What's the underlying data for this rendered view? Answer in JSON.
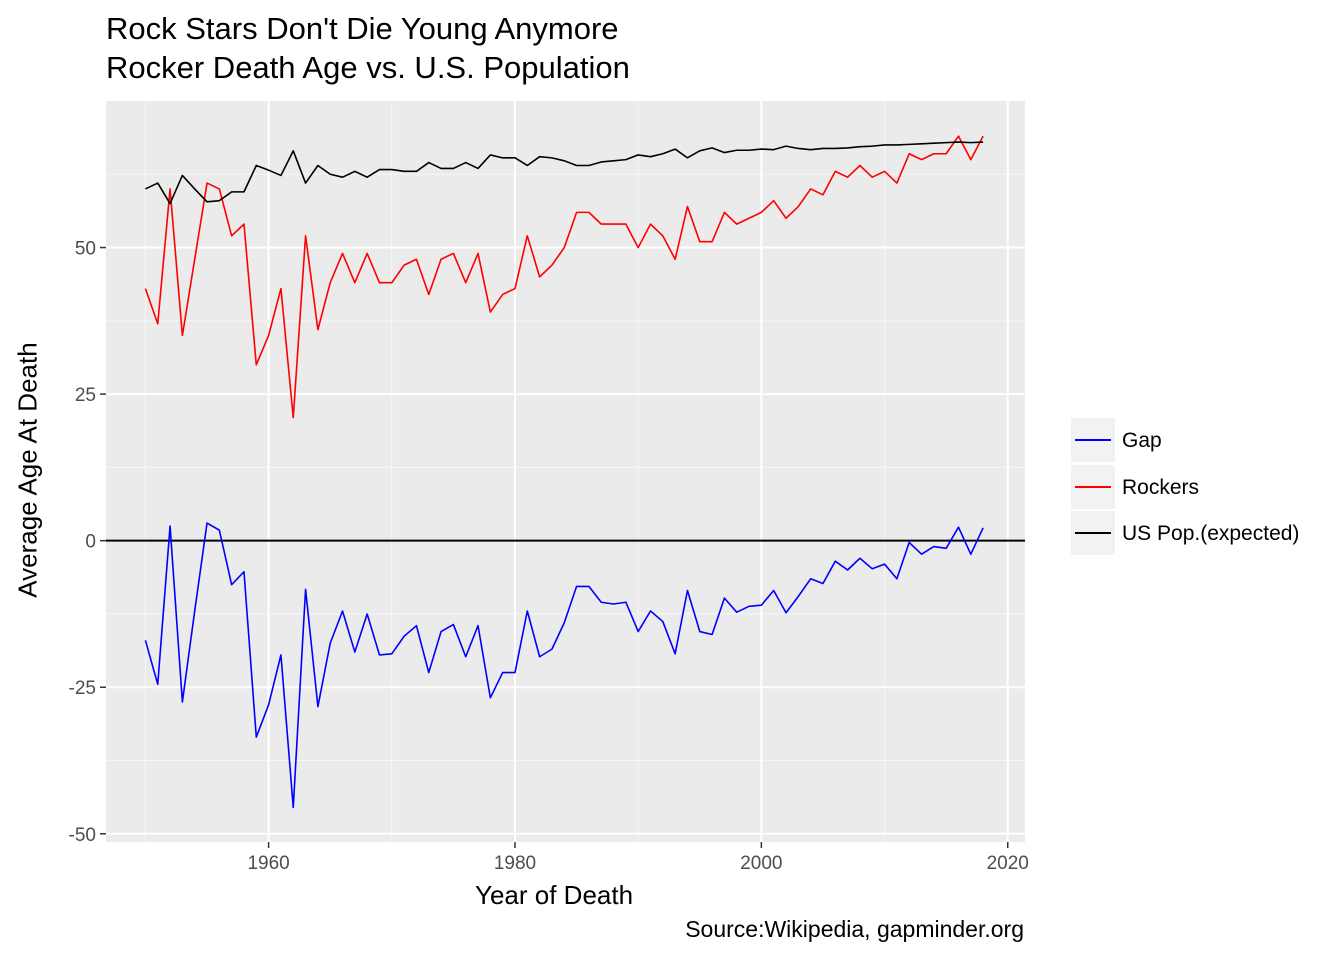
{
  "chart_data": {
    "type": "line",
    "title": "Rock Stars Don't Die Young Anymore",
    "subtitle": "Rocker Death Age vs. U.S. Population",
    "xlabel": "Year of Death",
    "ylabel": "Average Age At Death",
    "caption": "Source:Wikipedia, gapminder.org",
    "xlim": [
      1946.8,
      2021.4
    ],
    "ylim": [
      -51.4,
      75.0
    ],
    "xticks": [
      1960,
      1980,
      2000,
      2020
    ],
    "yticks": [
      -50,
      -25,
      0,
      25,
      50
    ],
    "grid": true,
    "legend_position": "right",
    "hline": 0,
    "x": [
      1950,
      1951,
      1952,
      1953,
      1954,
      1955,
      1956,
      1957,
      1958,
      1959,
      1960,
      1961,
      1962,
      1963,
      1964,
      1965,
      1966,
      1967,
      1968,
      1969,
      1970,
      1971,
      1972,
      1973,
      1974,
      1975,
      1976,
      1977,
      1978,
      1979,
      1980,
      1981,
      1982,
      1983,
      1984,
      1985,
      1986,
      1987,
      1988,
      1989,
      1990,
      1991,
      1992,
      1993,
      1994,
      1995,
      1996,
      1997,
      1998,
      1999,
      2000,
      2001,
      2002,
      2003,
      2004,
      2005,
      2006,
      2007,
      2008,
      2009,
      2010,
      2011,
      2012,
      2013,
      2014,
      2015,
      2016,
      2017,
      2018
    ],
    "series": [
      {
        "name": "Gap",
        "color": "#0000FF",
        "values": [
          -17,
          -24.5,
          2.5,
          -27.5,
          -12,
          3,
          1.8,
          -7.5,
          -5.3,
          -33.5,
          -28,
          -19.5,
          -45.5,
          -8.3,
          -28.3,
          -17.5,
          -12,
          -19,
          -12.5,
          -19.5,
          -19.3,
          -16.3,
          -14.5,
          -22.5,
          -15.5,
          -14.3,
          -19.8,
          -14.5,
          -26.8,
          -22.5,
          -22.5,
          -12,
          -19.8,
          -18.5,
          -14,
          -7.8,
          -7.8,
          -10.5,
          -10.8,
          -10.5,
          -15.5,
          -12,
          -13.8,
          -19.3,
          -8.5,
          -15.5,
          -16,
          -9.8,
          -12.2,
          -11.2,
          -11,
          -8.5,
          -12.3,
          -9.5,
          -6.5,
          -7.3,
          -3.5,
          -5,
          -3,
          -4.8,
          -4,
          -6.5,
          -0.3,
          -2.3,
          -1,
          -1.3,
          2.3,
          -2.3,
          2.2
        ]
      },
      {
        "name": "Rockers",
        "color": "#FF0000",
        "values": [
          43,
          37,
          60,
          35,
          48,
          61,
          60,
          52,
          54,
          30,
          35,
          43,
          21,
          52,
          36,
          44,
          49,
          44,
          49,
          44,
          44,
          47,
          48,
          42,
          48,
          49,
          44,
          49,
          39,
          42,
          43,
          52,
          45,
          47,
          50,
          56,
          56,
          54,
          54,
          54,
          50,
          54,
          52,
          48,
          57,
          51,
          51,
          56,
          54,
          55,
          56,
          58,
          55,
          57,
          60,
          59,
          63,
          62,
          64,
          62,
          63,
          61,
          66,
          65,
          66,
          66,
          69,
          65,
          69
        ]
      },
      {
        "name": "US Pop.(expected)",
        "color": "#000000",
        "values": [
          60,
          61,
          57.5,
          62.3,
          60,
          57.8,
          58,
          59.5,
          59.5,
          64,
          63.2,
          62.3,
          66.5,
          61,
          64,
          62.5,
          62,
          63,
          62,
          63.3,
          63.3,
          63,
          63,
          64.5,
          63.5,
          63.5,
          64.5,
          63.5,
          65.8,
          65.3,
          65.3,
          64,
          65.5,
          65.3,
          64.8,
          64,
          64,
          64.6,
          64.8,
          65,
          65.8,
          65.5,
          66,
          66.8,
          65.3,
          66.5,
          67,
          66.2,
          66.6,
          66.6,
          66.8,
          66.7,
          67.3,
          66.9,
          66.7,
          66.9,
          66.9,
          67,
          67.2,
          67.3,
          67.5,
          67.5,
          67.6,
          67.7,
          67.8,
          67.9,
          68,
          67.9,
          68
        ]
      }
    ]
  }
}
